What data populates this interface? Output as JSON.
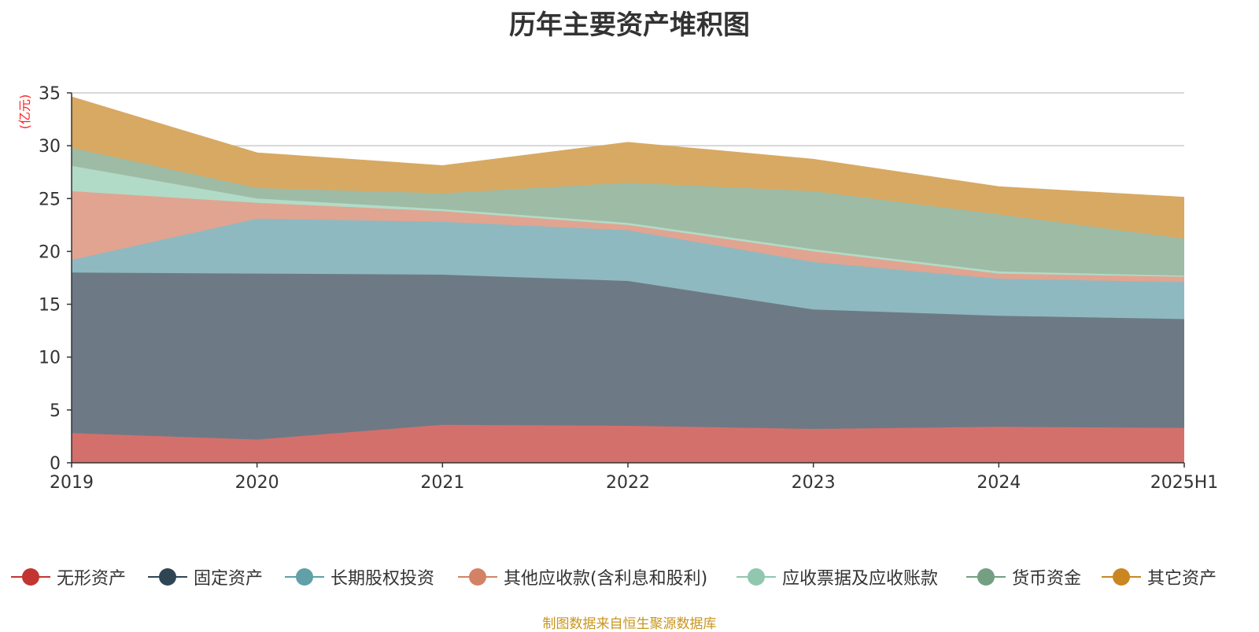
{
  "chart_data": {
    "type": "area",
    "stacked": true,
    "title": "历年主要资产堆积图",
    "ylabel": "(亿元)",
    "xlabel": "",
    "categories": [
      "2019",
      "2020",
      "2021",
      "2022",
      "2023",
      "2024",
      "2025H1"
    ],
    "ylim": [
      0,
      35
    ],
    "yticks": [
      0,
      5,
      10,
      15,
      20,
      25,
      30,
      35
    ],
    "grid": true,
    "legend_position": "bottom",
    "source": "制图数据来自恒生聚源数据库",
    "series": [
      {
        "name": "无形资产",
        "color": "#d4706c",
        "marker_color": "#c23531",
        "values": [
          2.8,
          2.2,
          3.6,
          3.5,
          3.2,
          3.4,
          3.3
        ]
      },
      {
        "name": "固定资产",
        "color": "#6d7a85",
        "marker_color": "#2f4554",
        "values": [
          15.2,
          15.7,
          14.2,
          13.7,
          11.3,
          10.5,
          10.3
        ]
      },
      {
        "name": "长期股权投资",
        "color": "#8fb9c0",
        "marker_color": "#61a0a8",
        "values": [
          1.2,
          5.2,
          5.0,
          4.8,
          4.5,
          3.5,
          3.5
        ]
      },
      {
        "name": "其他应收款(含利息和股利)",
        "color": "#e1a491",
        "marker_color": "#d48265",
        "values": [
          6.5,
          1.5,
          1.0,
          0.5,
          1.0,
          0.5,
          0.5
        ]
      },
      {
        "name": "应收票据及应收账款",
        "color": "#b1dbc7",
        "marker_color": "#91c7ae",
        "values": [
          2.4,
          0.4,
          0.2,
          0.2,
          0.2,
          0.2,
          0.1
        ]
      },
      {
        "name": "货币资金",
        "color": "#9ebba5",
        "marker_color": "#749f83",
        "values": [
          1.7,
          1.0,
          1.5,
          3.8,
          5.5,
          5.4,
          3.5
        ]
      },
      {
        "name": "其它资产",
        "color": "#d8a963",
        "marker_color": "#ca8622",
        "values": [
          4.8,
          3.3,
          2.6,
          3.8,
          3.0,
          2.6,
          3.9
        ]
      }
    ]
  }
}
